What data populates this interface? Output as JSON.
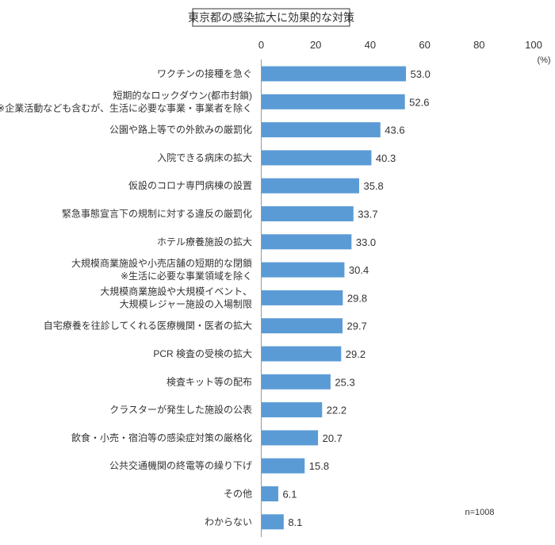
{
  "chart_data": {
    "type": "bar",
    "orientation": "horizontal",
    "title": "東京都の感染拡大に効果的な対策",
    "unit_label": "(%)",
    "note": "n=1008",
    "xlim": [
      0,
      100
    ],
    "ticks": [
      0,
      20,
      40,
      60,
      80,
      100
    ],
    "bar_color": "#5B9BD5",
    "categories": [
      [
        "ワクチンの接種を急ぐ"
      ],
      [
        "短期的なロックダウン(都市封鎖)",
        "※企業活動なども含むが、生活に必要な事業・事業者を除く"
      ],
      [
        "公園や路上等での外飲みの厳罰化"
      ],
      [
        "入院できる病床の拡大"
      ],
      [
        "仮設のコロナ専門病棟の設置"
      ],
      [
        "緊急事態宣言下の規制に対する違反の厳罰化"
      ],
      [
        "ホテル療養施設の拡大"
      ],
      [
        "大規模商業施設や小売店舗の短期的な閉鎖",
        "※生活に必要な事業領域を除く"
      ],
      [
        "大規模商業施設や大規模イベント、",
        "大規模レジャー施設の入場制限"
      ],
      [
        "自宅療養を往診してくれる医療機関・医者の拡大"
      ],
      [
        "PCR 検査の受検の拡大"
      ],
      [
        "検査キット等の配布"
      ],
      [
        "クラスターが発生した施設の公表"
      ],
      [
        "飲食・小売・宿泊等の感染症対策の厳格化"
      ],
      [
        "公共交通機関の終電等の繰り下げ"
      ],
      [
        "その他"
      ],
      [
        "わからない"
      ]
    ],
    "values": [
      53.0,
      52.6,
      43.6,
      40.3,
      35.8,
      33.7,
      33.0,
      30.4,
      29.8,
      29.7,
      29.2,
      25.3,
      22.2,
      20.7,
      15.8,
      6.1,
      8.1
    ]
  }
}
